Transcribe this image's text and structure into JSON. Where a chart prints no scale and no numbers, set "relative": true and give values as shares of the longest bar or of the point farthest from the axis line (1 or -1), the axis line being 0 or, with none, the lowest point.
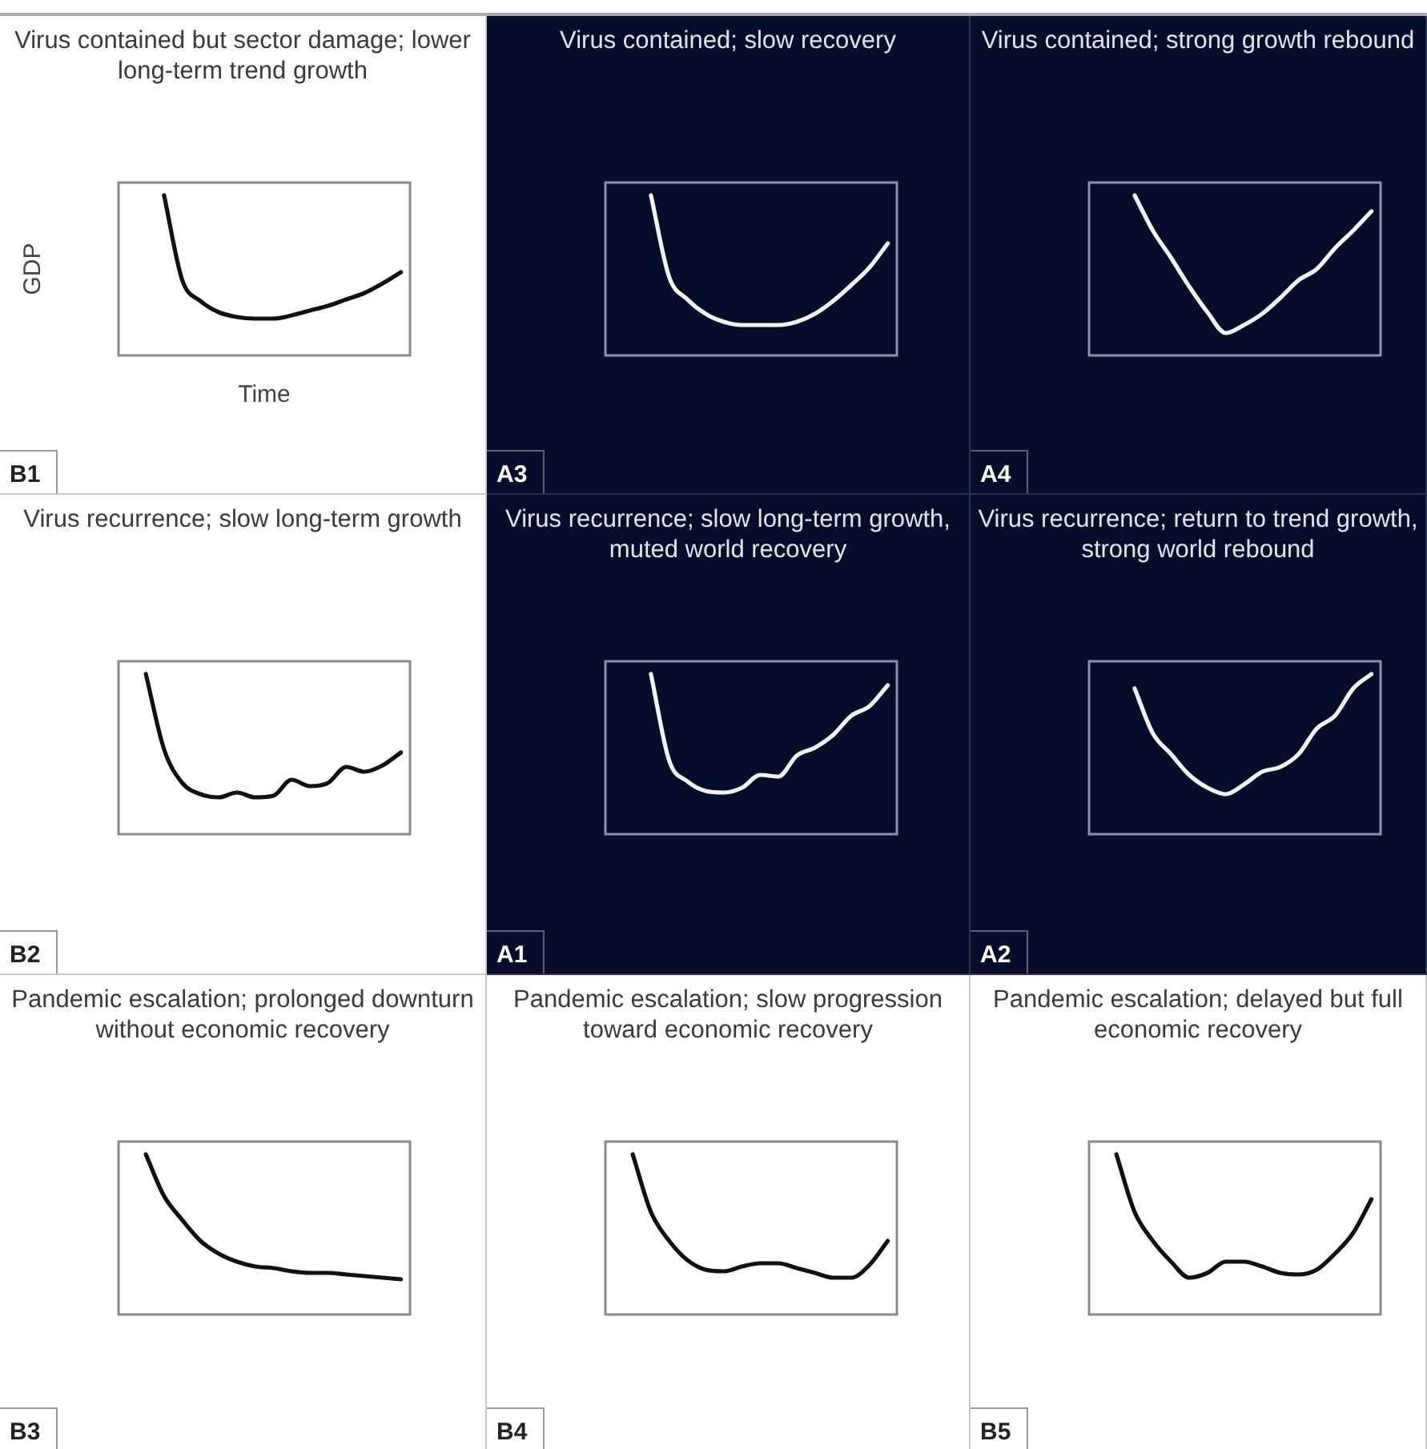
{
  "chart_data": [
    {
      "type": "line",
      "title": "Virus contained but sector damage; lower long-term trend growth",
      "xlabel": "Time",
      "ylabel": "GDP",
      "annotations": [
        "B1"
      ],
      "relative": true,
      "color": "#111111",
      "categories": [
        null,
        null,
        null,
        null,
        null,
        null,
        null,
        null,
        null,
        null,
        null,
        null,
        null,
        null,
        null,
        null
      ],
      "values": [
        null,
        null,
        1,
        0.47,
        0.34,
        0.27,
        0.24,
        0.23,
        0.23,
        0.25,
        0.28,
        0.31,
        0.35,
        0.39,
        0.45,
        0.52
      ]
    },
    {
      "type": "line",
      "title": "Virus contained; slow recovery",
      "annotations": [
        "A3"
      ],
      "relative": true,
      "color": "#f2f2f2",
      "categories": [
        null,
        null,
        null,
        null,
        null,
        null,
        null,
        null,
        null,
        null,
        null,
        null,
        null,
        null,
        null,
        null
      ],
      "values": [
        null,
        null,
        1,
        0.49,
        0.35,
        0.26,
        0.21,
        0.19,
        0.19,
        0.19,
        0.21,
        0.26,
        0.34,
        0.44,
        0.55,
        0.7
      ]
    },
    {
      "type": "line",
      "title": "Virus contained; strong growth rebound",
      "annotations": [
        "A4"
      ],
      "relative": true,
      "color": "#f2f2f2",
      "categories": [
        null,
        null,
        null,
        null,
        null,
        null,
        null,
        null,
        null,
        null,
        null,
        null,
        null,
        null,
        null,
        null
      ],
      "values": [
        null,
        null,
        1,
        0.78,
        0.61,
        0.43,
        0.27,
        0.14,
        0.19,
        0.26,
        0.36,
        0.47,
        0.54,
        0.67,
        0.78,
        0.9
      ]
    },
    {
      "type": "line",
      "title": "Virus recurrence; slow long-term growth",
      "annotations": [
        "B2"
      ],
      "relative": true,
      "color": "#111111",
      "categories": [
        null,
        null,
        null,
        null,
        null,
        null,
        null,
        null,
        null,
        null,
        null,
        null,
        null,
        null,
        null,
        null
      ],
      "values": [
        null,
        1,
        0.53,
        0.32,
        0.25,
        0.23,
        0.26,
        0.23,
        0.24,
        0.34,
        0.3,
        0.32,
        0.42,
        0.39,
        0.43,
        0.51
      ]
    },
    {
      "type": "line",
      "title": "Virus recurrence; slow long-term growth, muted world recovery",
      "annotations": [
        "A1"
      ],
      "relative": true,
      "color": "#f2f2f2",
      "categories": [
        null,
        null,
        null,
        null,
        null,
        null,
        null,
        null,
        null,
        null,
        null,
        null,
        null,
        null,
        null,
        null
      ],
      "values": [
        null,
        null,
        1,
        0.46,
        0.33,
        0.27,
        0.26,
        0.29,
        0.37,
        0.36,
        0.49,
        0.54,
        0.62,
        0.74,
        0.8,
        0.93
      ]
    },
    {
      "type": "line",
      "title": "Virus recurrence; return to trend growth, strong world rebound",
      "annotations": [
        "A2"
      ],
      "relative": true,
      "color": "#f2f2f2",
      "categories": [
        null,
        null,
        null,
        null,
        null,
        null,
        null,
        null,
        null,
        null,
        null,
        null,
        null,
        null,
        null,
        null
      ],
      "values": [
        null,
        null,
        0.91,
        0.63,
        0.5,
        0.37,
        0.29,
        0.25,
        0.31,
        0.39,
        0.42,
        0.5,
        0.66,
        0.74,
        0.91,
        1
      ]
    },
    {
      "type": "line",
      "title": "Pandemic escalation; prolonged downturn without economic recovery",
      "annotations": [
        "B3"
      ],
      "relative": true,
      "color": "#111111",
      "categories": [
        null,
        null,
        null,
        null,
        null,
        null,
        null,
        null,
        null,
        null,
        null,
        null,
        null,
        null,
        null,
        null
      ],
      "values": [
        null,
        1,
        0.74,
        0.59,
        0.46,
        0.38,
        0.33,
        0.3,
        0.29,
        0.27,
        0.26,
        0.26,
        0.25,
        0.24,
        0.23,
        0.22
      ]
    },
    {
      "type": "line",
      "title": "Pandemic escalation; slow progression toward economic recovery",
      "annotations": [
        "B4"
      ],
      "relative": true,
      "color": "#111111",
      "categories": [
        null,
        null,
        null,
        null,
        null,
        null,
        null,
        null,
        null,
        null,
        null,
        null,
        null,
        null,
        null,
        null
      ],
      "values": [
        null,
        1,
        0.64,
        0.46,
        0.34,
        0.28,
        0.27,
        0.3,
        0.32,
        0.32,
        0.29,
        0.26,
        0.23,
        0.23,
        0.31,
        0.46
      ]
    },
    {
      "type": "line",
      "title": "Pandemic escalation; delayed but full economic recovery",
      "annotations": [
        "B5"
      ],
      "relative": true,
      "color": "#111111",
      "categories": [
        null,
        null,
        null,
        null,
        null,
        null,
        null,
        null,
        null,
        null,
        null,
        null,
        null,
        null,
        null,
        null
      ],
      "values": [
        null,
        1,
        0.64,
        0.46,
        0.33,
        0.23,
        0.26,
        0.33,
        0.33,
        0.3,
        0.26,
        0.25,
        0.28,
        0.38,
        0.51,
        0.72
      ]
    }
  ]
}
